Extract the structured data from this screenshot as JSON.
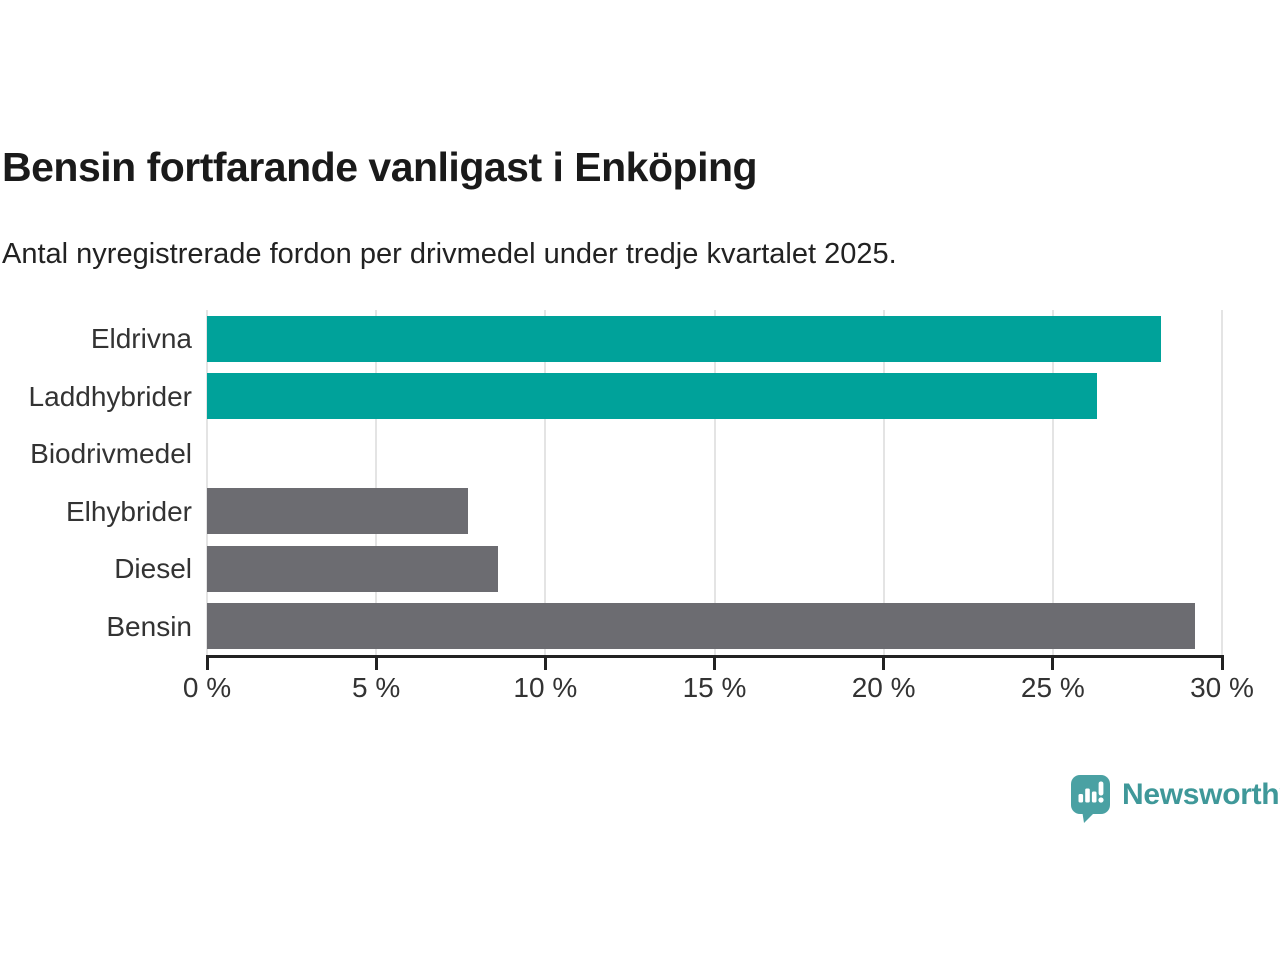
{
  "header": {
    "title": "Bensin fortfarande vanligast i Enköping",
    "subtitle": "Antal nyregistrerade fordon per drivmedel under tredje kvartalet 2025."
  },
  "chart_data": {
    "type": "bar",
    "orientation": "horizontal",
    "title": "Bensin fortfarande vanligast i Enköping",
    "subtitle": "Antal nyregistrerade fordon per drivmedel under tredje kvartalet 2025.",
    "categories": [
      "Eldrivna",
      "Laddhybrider",
      "Biodrivmedel",
      "Elhybrider",
      "Diesel",
      "Bensin"
    ],
    "values": [
      28.2,
      26.3,
      0,
      7.7,
      8.6,
      29.2
    ],
    "unit": "%",
    "bar_colors": [
      "#00a29a",
      "#00a29a",
      "#6c6c71",
      "#6c6c71",
      "#6c6c71",
      "#6c6c71"
    ],
    "xlim": [
      0,
      30
    ],
    "x_ticks": [
      0,
      5,
      10,
      15,
      20,
      25,
      30
    ],
    "x_tick_labels": [
      "0 %",
      "5 %",
      "10 %",
      "15 %",
      "20 %",
      "25 %",
      "30 %"
    ],
    "grid": "vertical-only",
    "gridline_color": "#e4e4e4",
    "axis_color": "#222222",
    "legend": "none"
  },
  "footer": {
    "brand": "Newsworthy",
    "brand_color": "#3f9899",
    "icon": "newsworthy-speech-bubble-chart-icon",
    "icon_color": "#4aa1a3"
  }
}
